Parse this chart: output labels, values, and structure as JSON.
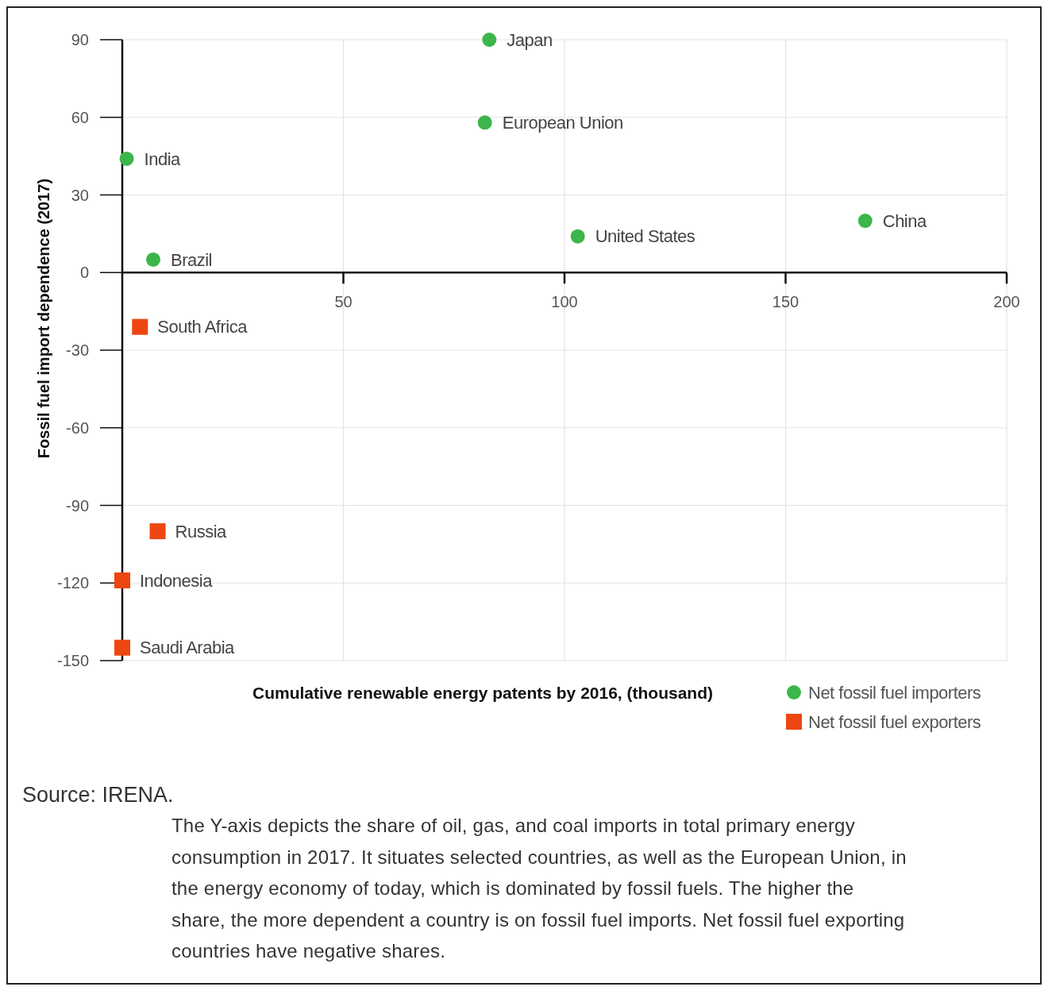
{
  "chart_data": {
    "type": "scatter",
    "xlabel": "Cumulative renewable energy patents by 2016, (thousand)",
    "ylabel": "Fossil fuel import dependence (2017)",
    "series": [
      {
        "name": "Net fossil fuel importers",
        "color": "#3cb54a",
        "marker": "circle",
        "x": [
          83,
          82,
          1,
          7,
          103,
          168
        ],
        "values": [
          90,
          58,
          44,
          5,
          14,
          20
        ]
      },
      {
        "name": "Net fossil fuel exporters",
        "color": "#ee4611",
        "marker": "square",
        "x": [
          4,
          8,
          0,
          0
        ],
        "values": [
          -21,
          -100,
          -119,
          -145
        ]
      }
    ],
    "xlim": [
      0,
      200
    ],
    "xticks": [
      50,
      100,
      150,
      200
    ],
    "ylim": [
      -150,
      90
    ],
    "yticks": [
      -150,
      -120,
      -90,
      -60,
      -30,
      0,
      30,
      60,
      90
    ],
    "grid": true,
    "legend": "bottom right",
    "annotations": [
      {
        "text": "Japan",
        "x": 83,
        "y": 90
      },
      {
        "text": "European Union",
        "x": 82,
        "y": 58
      },
      {
        "text": "India",
        "x": 1,
        "y": 44
      },
      {
        "text": "Brazil",
        "x": 7,
        "y": 5
      },
      {
        "text": "United States",
        "x": 103,
        "y": 14
      },
      {
        "text": "China",
        "x": 168,
        "y": 20
      },
      {
        "text": "South Africa",
        "x": 4,
        "y": -21
      },
      {
        "text": "Russia",
        "x": 8,
        "y": -100
      },
      {
        "text": "Indonesia",
        "x": 0,
        "y": -119
      },
      {
        "text": "Saudi Arabia",
        "x": 0,
        "y": -145
      },
      "Source: IRENA.",
      "The Y-axis depicts the share of oil, gas, and coal imports in total primary energy consumption in 2017. It situates selected countries, as well as the European Union, in the energy economy of today, which is dominated by fossil fuels. The higher the share, the more dependent a country is on fossil fuel imports. Net fossil fuel exporting countries have negative shares."
    ]
  }
}
